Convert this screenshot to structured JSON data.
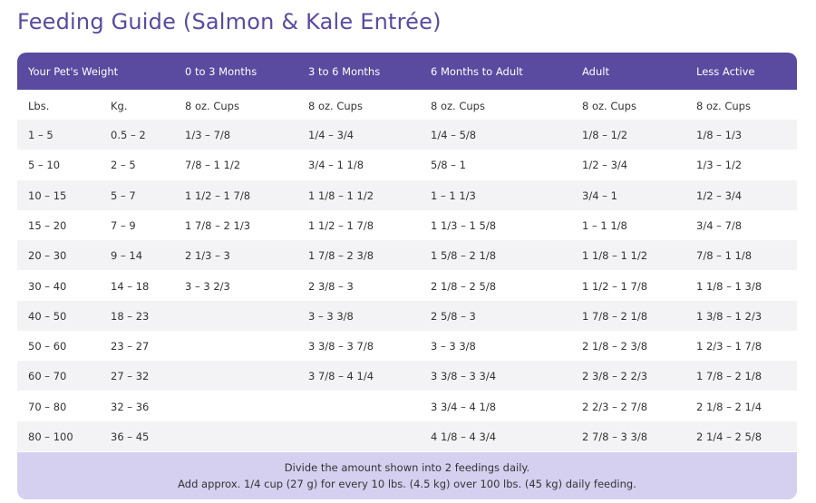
{
  "title": "Feeding Guide (Salmon & Kale Entrée)",
  "header": [
    "Your Pet's Weight",
    "0 to 3 Months",
    "3 to 6 Months",
    "6 Months to Adult",
    "Adult",
    "Less Active"
  ],
  "subheader": [
    "Lbs.",
    "Kg.",
    "8 oz. Cups",
    "8 oz. Cups",
    "8 oz. Cups",
    "8 oz. Cups",
    "8 oz. Cups"
  ],
  "rows": [
    [
      "1 – 5",
      "0.5 – 2",
      "1/3 – 7/8",
      "1/4 – 3/4",
      "1/4 – 5/8",
      "1/8 – 1/2",
      "1/8 – 1/3"
    ],
    [
      "5 – 10",
      "2 – 5",
      "7/8 – 1 1/2",
      "3/4 – 1 1/8",
      "5/8 – 1",
      "1/2 – 3/4",
      "1/3 – 1/2"
    ],
    [
      "10 – 15",
      "5 – 7",
      "1 1/2 – 1 7/8",
      "1 1/8 – 1 1/2",
      "1 – 1 1/3",
      "3/4 – 1",
      "1/2 – 3/4"
    ],
    [
      "15 – 20",
      "7 – 9",
      "1 7/8 – 2 1/3",
      "1 1/2 – 1 7/8",
      "1 1/3 – 1 5/8",
      "1 – 1 1/8",
      "3/4 – 7/8"
    ],
    [
      "20 – 30",
      "9 – 14",
      "2 1/3 – 3",
      "1 7/8 – 2 3/8",
      "1 5/8 – 2 1/8",
      "1 1/8 – 1 1/2",
      "7/8 – 1 1/8"
    ],
    [
      "30 – 40",
      "14 – 18",
      "3 – 3 2/3",
      "2 3/8 – 3",
      "2 1/8 – 2 5/8",
      "1 1/2 – 1 7/8",
      "1 1/8 – 1 3/8"
    ],
    [
      "40 – 50",
      "18 – 23",
      "",
      "3 – 3 3/8",
      "2 5/8 – 3",
      "1 7/8 – 2 1/8",
      "1 3/8 – 1 2/3"
    ],
    [
      "50 – 60",
      "23 – 27",
      "",
      "3 3/8 – 3 7/8",
      "3 – 3 3/8",
      "2 1/8 – 2 3/8",
      "1 2/3 – 1 7/8"
    ],
    [
      "60 – 70",
      "27 – 32",
      "",
      "3 7/8 – 4 1/4",
      "3 3/8 – 3 3/4",
      "2 3/8 – 2 2/3",
      "1 7/8 – 2 1/8"
    ],
    [
      "70 – 80",
      "32 – 36",
      "",
      "",
      "3 3/4 – 4 1/8",
      "2 2/3 – 2 7/8",
      "2 1/8 – 2 1/4"
    ],
    [
      "80 – 100",
      "36 – 45",
      "",
      "",
      "4 1/8 – 4 3/4",
      "2 7/8 – 3 3/8",
      "2 1/4 – 2 5/8"
    ]
  ],
  "footer": [
    "Divide the amount shown into 2 feedings daily.",
    "Add approx. 1/4 cup (27 g) for every 10 lbs. (4.5 kg) over 100 lbs. (45 kg) daily feeding."
  ],
  "colors": {
    "accent": "#5a4aa0",
    "row_alt": "#f3f3f5",
    "footer_bg": "#d5d0f0"
  }
}
